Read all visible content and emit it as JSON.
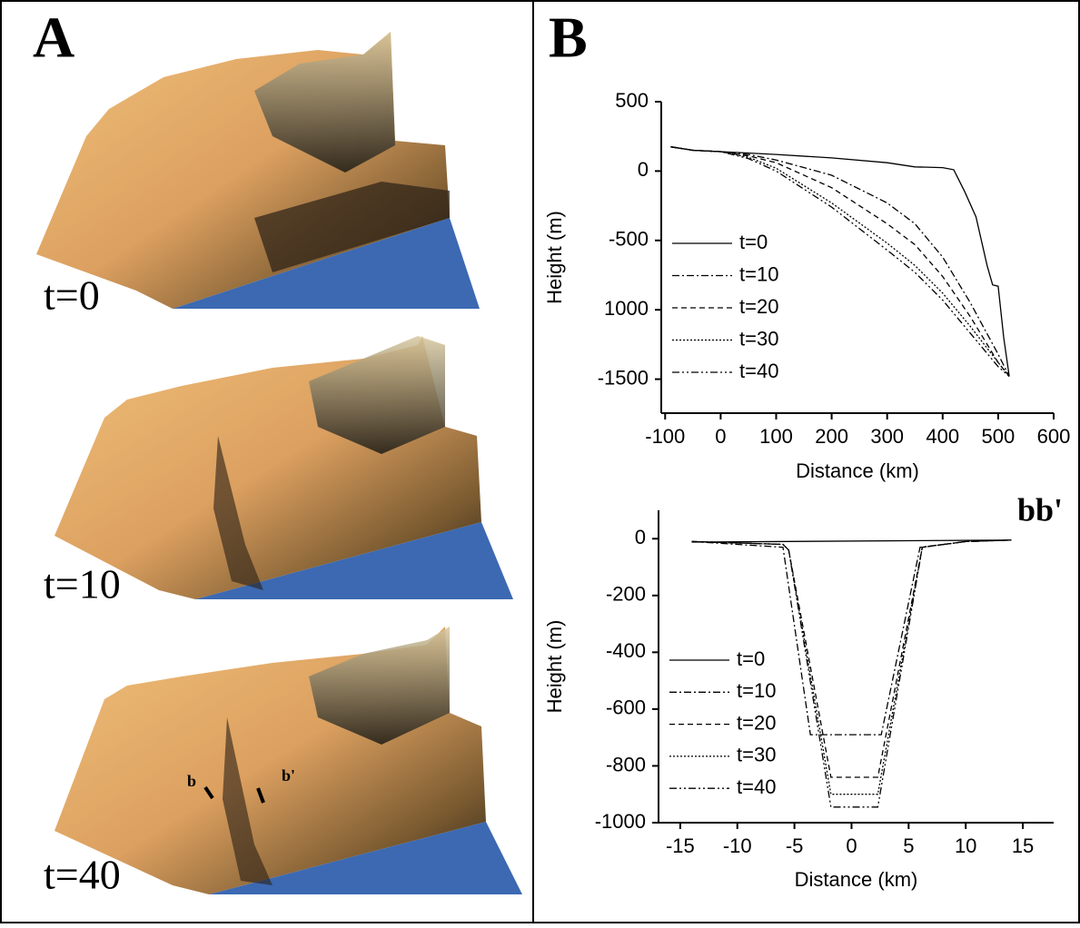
{
  "panel_a": {
    "label": "A",
    "frames": [
      "t=0",
      "t=10",
      "t=40"
    ],
    "section_start": "b",
    "section_end": "b'"
  },
  "panel_b": {
    "label": "B"
  },
  "chart_data": [
    {
      "type": "line",
      "xlabel": "Distance (km)",
      "ylabel": "Height (m)",
      "xlim": [
        -107,
        600
      ],
      "xticks": [
        -100,
        0,
        100,
        200,
        300,
        400,
        500,
        600
      ],
      "ylim": [
        -1745,
        500
      ],
      "yticks": [
        500,
        0,
        -500,
        {
          "value": -1000,
          "label": "1000"
        },
        -1500
      ],
      "series": [
        {
          "name": "t=0",
          "color": "#000000",
          "style": "solid",
          "x": [
            -90,
            -50,
            0,
            100,
            200,
            300,
            350,
            400,
            420,
            440,
            460,
            480,
            490,
            500,
            510,
            520
          ],
          "values": [
            175,
            150,
            140,
            120,
            95,
            60,
            30,
            25,
            10,
            -150,
            -330,
            -680,
            -820,
            -830,
            -1200,
            -1480
          ]
        },
        {
          "name": "t=10",
          "color": "#000000",
          "style": "dashdot",
          "x": [
            -90,
            -50,
            0,
            50,
            100,
            200,
            300,
            350,
            400,
            450,
            500,
            520
          ],
          "values": [
            175,
            150,
            140,
            120,
            80,
            -30,
            -230,
            -380,
            -620,
            -950,
            -1320,
            -1480
          ]
        },
        {
          "name": "t=20",
          "color": "#000000",
          "style": "dashed",
          "x": [
            -90,
            -50,
            0,
            50,
            100,
            200,
            300,
            350,
            400,
            450,
            500,
            520
          ],
          "values": [
            175,
            150,
            140,
            110,
            60,
            -120,
            -380,
            -530,
            -760,
            -1050,
            -1380,
            -1480
          ]
        },
        {
          "name": "t=30",
          "color": "#000000",
          "style": "dotted",
          "x": [
            -90,
            -50,
            0,
            50,
            100,
            200,
            300,
            350,
            400,
            450,
            500,
            520
          ],
          "values": [
            175,
            150,
            140,
            100,
            20,
            -230,
            -520,
            -680,
            -880,
            -1120,
            -1380,
            -1480
          ]
        },
        {
          "name": "t=40",
          "color": "#000000",
          "style": "dashdotdot",
          "x": [
            -90,
            -50,
            0,
            50,
            100,
            200,
            300,
            350,
            400,
            450,
            500,
            520
          ],
          "values": [
            175,
            150,
            140,
            90,
            0,
            -260,
            -570,
            -730,
            -930,
            -1170,
            -1410,
            -1480
          ]
        }
      ]
    },
    {
      "type": "line",
      "title": "bb'",
      "xlabel": "Distance (km)",
      "ylabel": "Height (m)",
      "xlim": [
        -16.9,
        17.7
      ],
      "xticks": [
        -15,
        -10,
        -5,
        0,
        5,
        10,
        15
      ],
      "ylim": [
        -1000,
        100
      ],
      "yticks": [
        0,
        -200,
        -400,
        -600,
        -800,
        -1000
      ],
      "series": [
        {
          "name": "t=0",
          "color": "#000000",
          "style": "solid",
          "x": [
            -14,
            14
          ],
          "values": [
            -12,
            -5
          ]
        },
        {
          "name": "t=10",
          "color": "#000000",
          "style": "dashdot",
          "x": [
            -14,
            -6,
            -3.6,
            2.6,
            6,
            10,
            14
          ],
          "values": [
            -10,
            -30,
            -690,
            -690,
            -30,
            -10,
            -5
          ]
        },
        {
          "name": "t=20",
          "color": "#000000",
          "style": "dashed",
          "x": [
            -14,
            -6,
            -5.5,
            -1.8,
            2.3,
            6.2,
            10,
            14
          ],
          "values": [
            -10,
            -20,
            -40,
            -840,
            -840,
            -30,
            -10,
            -5
          ]
        },
        {
          "name": "t=30",
          "color": "#000000",
          "style": "dotted",
          "x": [
            -14,
            -6,
            -5.5,
            -1.8,
            2.3,
            6.2,
            10,
            14
          ],
          "values": [
            -10,
            -20,
            -40,
            -900,
            -900,
            -30,
            -10,
            -5
          ]
        },
        {
          "name": "t=40",
          "color": "#000000",
          "style": "dashdotdot",
          "x": [
            -14,
            -6,
            -5.5,
            -1.8,
            2.3,
            6.2,
            10,
            14
          ],
          "values": [
            -10,
            -20,
            -40,
            -945,
            -945,
            -30,
            -10,
            -5
          ]
        }
      ]
    }
  ]
}
